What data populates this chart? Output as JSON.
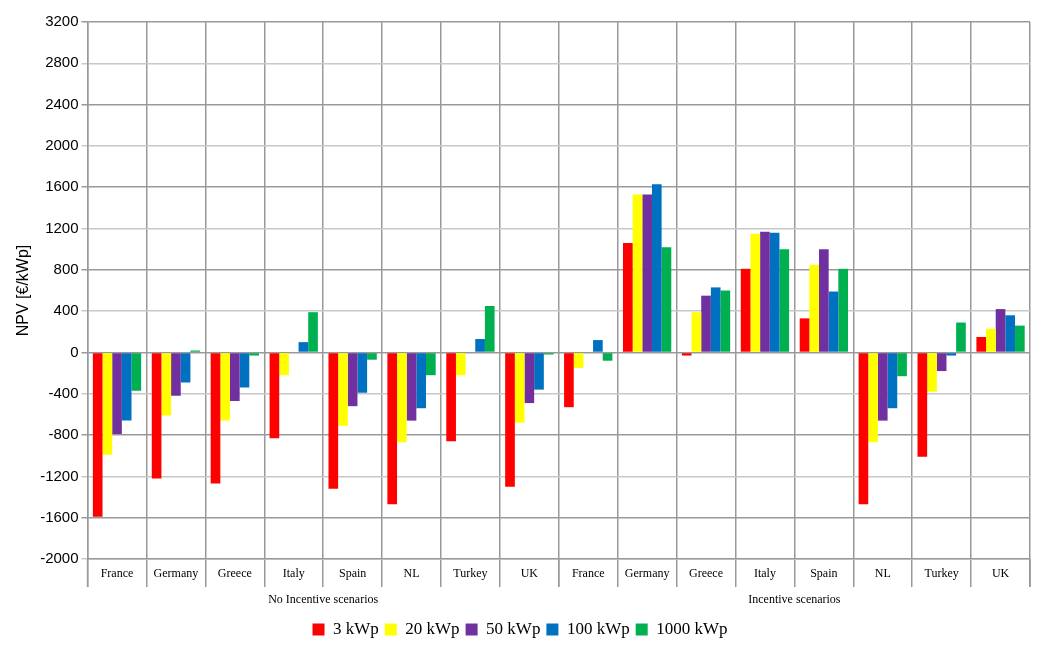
{
  "chart_data": {
    "type": "bar",
    "ylabel": "NPV [€/kWp]",
    "categories": [
      "France",
      "Germany",
      "Greece",
      "Italy",
      "Spain",
      "NL",
      "Turkey",
      "UK",
      "France",
      "Germany",
      "Greece",
      "Italy",
      "Spain",
      "NL",
      "Turkey",
      "UK"
    ],
    "annotations": [
      "No Incentive scenarios",
      "Incentive scenarios"
    ],
    "series": [
      {
        "name": "3 kWp",
        "color": "#ff0000",
        "values": [
          -1590,
          -1220,
          -1270,
          -830,
          -1320,
          -1470,
          -860,
          -1300,
          -530,
          1060,
          -30,
          810,
          330,
          -1470,
          -1010,
          150
        ]
      },
      {
        "name": "20 kWp",
        "color": "#ffff00",
        "values": [
          -990,
          -610,
          -660,
          -220,
          -710,
          -870,
          -220,
          -680,
          -150,
          1530,
          390,
          1150,
          850,
          -870,
          -380,
          230
        ]
      },
      {
        "name": "50 kWp",
        "color": "#7030a0",
        "values": [
          -790,
          -420,
          -470,
          0,
          -520,
          -660,
          0,
          -490,
          0,
          1530,
          550,
          1170,
          1000,
          -660,
          -180,
          420
        ]
      },
      {
        "name": "100 kWp",
        "color": "#0070c0",
        "values": [
          -660,
          -290,
          -340,
          100,
          -390,
          -540,
          130,
          -360,
          120,
          1630,
          630,
          1160,
          590,
          -540,
          -30,
          360
        ]
      },
      {
        "name": "1000 kWp",
        "color": "#00b050",
        "values": [
          -370,
          20,
          -30,
          390,
          -70,
          -220,
          450,
          -20,
          -80,
          1020,
          600,
          1000,
          810,
          -230,
          290,
          260
        ]
      }
    ],
    "ylim": [
      -2000,
      3200
    ],
    "yticks": [
      -2000,
      -1600,
      -1200,
      -800,
      -400,
      0,
      400,
      800,
      1200,
      1600,
      2000,
      2400,
      2800,
      3200
    ],
    "grid": true,
    "legend": "bottom"
  }
}
